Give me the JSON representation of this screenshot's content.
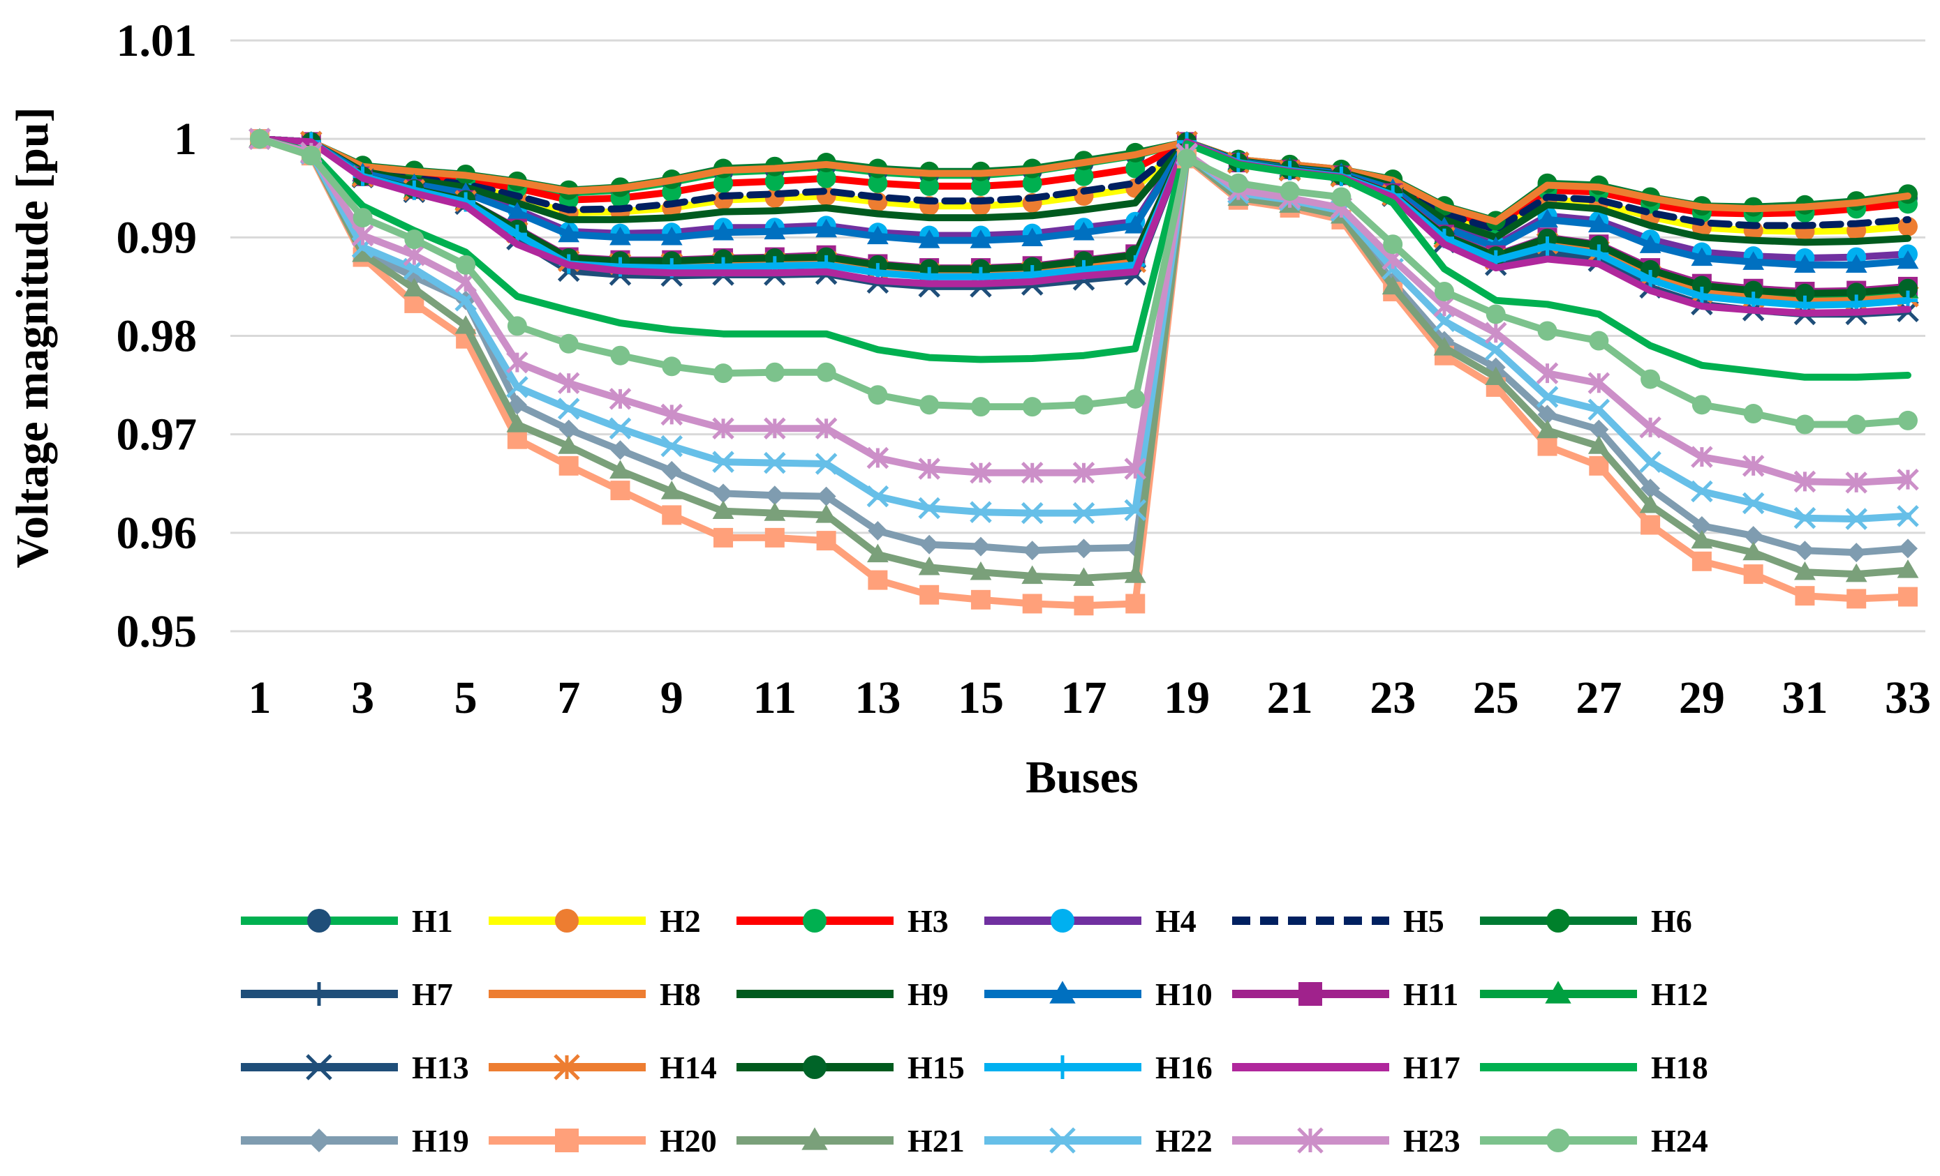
{
  "chart_data": {
    "type": "line",
    "title": "",
    "xlabel": "Buses",
    "ylabel": "Voltage magnitude [pu]",
    "x": [
      1,
      2,
      3,
      4,
      5,
      6,
      7,
      8,
      9,
      10,
      11,
      12,
      13,
      14,
      15,
      16,
      17,
      18,
      19,
      20,
      21,
      22,
      23,
      24,
      25,
      26,
      27,
      28,
      29,
      30,
      31,
      32,
      33
    ],
    "xtick_labels": [
      "1",
      "3",
      "5",
      "7",
      "9",
      "11",
      "13",
      "15",
      "17",
      "19",
      "21",
      "23",
      "25",
      "27",
      "29",
      "31",
      "33"
    ],
    "ytick_labels": [
      "0.95",
      "0.96",
      "0.97",
      "0.98",
      "0.99",
      "1",
      "1.01"
    ],
    "ylim": [
      0.95,
      1.01
    ],
    "grid": true,
    "legend_position": "bottom",
    "series": [
      {
        "name": "H1",
        "color": "#00b050",
        "marker": "circle",
        "marker_color": "#1f4e79",
        "values": [
          1,
          0.9997,
          0.9972,
          0.9966,
          0.9962,
          0.9955,
          0.9945,
          0.9948,
          0.9956,
          0.9966,
          0.9968,
          0.9972,
          0.9966,
          0.9963,
          0.9963,
          0.9967,
          0.9975,
          0.9983,
          0.9997,
          0.9979,
          0.9973,
          0.9968,
          0.9958,
          0.993,
          0.9915,
          0.9952,
          0.995,
          0.9938,
          0.9929,
          0.9928,
          0.993,
          0.9934,
          0.994
        ]
      },
      {
        "name": "H2",
        "color": "#ffff00",
        "marker": "circle",
        "marker_color": "#ed7d31",
        "values": [
          1,
          0.9997,
          0.9968,
          0.996,
          0.9953,
          0.994,
          0.9925,
          0.9926,
          0.993,
          0.9938,
          0.994,
          0.9942,
          0.9936,
          0.9932,
          0.9932,
          0.9935,
          0.9942,
          0.995,
          0.9997,
          0.9978,
          0.9972,
          0.9967,
          0.9954,
          0.9922,
          0.9905,
          0.9938,
          0.9935,
          0.9921,
          0.991,
          0.9907,
          0.9906,
          0.9907,
          0.9911
        ]
      },
      {
        "name": "H3",
        "color": "#ff0000",
        "marker": "circle",
        "marker_color": "#00b050",
        "values": [
          1,
          0.9997,
          0.997,
          0.9964,
          0.9958,
          0.995,
          0.9938,
          0.994,
          0.9946,
          0.9955,
          0.9957,
          0.996,
          0.9955,
          0.9952,
          0.9952,
          0.9955,
          0.9962,
          0.997,
          0.9997,
          0.9979,
          0.9973,
          0.9968,
          0.9957,
          0.9927,
          0.9912,
          0.9948,
          0.9946,
          0.9934,
          0.9925,
          0.9924,
          0.9925,
          0.9929,
          0.9934
        ]
      },
      {
        "name": "H4",
        "color": "#7030a0",
        "marker": "circle",
        "marker_color": "#00b0f0",
        "values": [
          1,
          0.9997,
          0.9965,
          0.9955,
          0.9946,
          0.9928,
          0.9906,
          0.9904,
          0.9905,
          0.991,
          0.991,
          0.9912,
          0.9905,
          0.9902,
          0.9902,
          0.9904,
          0.991,
          0.9916,
          0.9997,
          0.9977,
          0.997,
          0.9965,
          0.995,
          0.9912,
          0.9892,
          0.9922,
          0.9917,
          0.9898,
          0.9885,
          0.9881,
          0.9879,
          0.988,
          0.9883
        ]
      },
      {
        "name": "H5",
        "color": "#002060",
        "dashed": true,
        "marker": "none",
        "values": [
          1,
          0.9997,
          0.9968,
          0.996,
          0.9954,
          0.9942,
          0.9928,
          0.9929,
          0.9934,
          0.9942,
          0.9944,
          0.9947,
          0.9941,
          0.9937,
          0.9937,
          0.994,
          0.9947,
          0.9955,
          0.9997,
          0.9978,
          0.9972,
          0.9967,
          0.9955,
          0.9924,
          0.9908,
          0.9941,
          0.9938,
          0.9925,
          0.9915,
          0.9912,
          0.9912,
          0.9914,
          0.9918
        ]
      },
      {
        "name": "H6",
        "color": "#007a33",
        "marker": "circle",
        "marker_color": "#00802b",
        "values": [
          1,
          0.9997,
          0.9973,
          0.9968,
          0.9964,
          0.9957,
          0.9948,
          0.9951,
          0.9959,
          0.997,
          0.9972,
          0.9976,
          0.997,
          0.9967,
          0.9967,
          0.997,
          0.9978,
          0.9986,
          0.9997,
          0.9979,
          0.9974,
          0.9969,
          0.9959,
          0.9932,
          0.9917,
          0.9955,
          0.9953,
          0.9941,
          0.9932,
          0.9931,
          0.9933,
          0.9937,
          0.9944
        ]
      },
      {
        "name": "H7",
        "color": "#1f4e79",
        "marker": "plus",
        "marker_color": "#1f4e79",
        "values": [
          1,
          0.9997,
          0.9962,
          0.9948,
          0.9937,
          0.9905,
          0.9875,
          0.9872,
          0.9872,
          0.9873,
          0.9873,
          0.9874,
          0.9866,
          0.9863,
          0.9863,
          0.9865,
          0.987,
          0.9875,
          0.9997,
          0.9976,
          0.9968,
          0.9962,
          0.9944,
          0.99,
          0.9878,
          0.9895,
          0.9887,
          0.9862,
          0.9845,
          0.984,
          0.9836,
          0.9837,
          0.9841
        ]
      },
      {
        "name": "H8",
        "color": "#ed7d31",
        "marker": "none",
        "values": [
          1,
          0.9997,
          0.9972,
          0.9967,
          0.9963,
          0.9956,
          0.9947,
          0.995,
          0.9958,
          0.9968,
          0.997,
          0.9974,
          0.9968,
          0.9965,
          0.9965,
          0.9968,
          0.9976,
          0.9984,
          0.9997,
          0.9979,
          0.9974,
          0.9969,
          0.9958,
          0.9931,
          0.9916,
          0.9953,
          0.9951,
          0.994,
          0.9931,
          0.9929,
          0.9931,
          0.9935,
          0.9942
        ]
      },
      {
        "name": "H9",
        "color": "#005a1e",
        "marker": "none",
        "values": [
          1,
          0.9997,
          0.9967,
          0.9958,
          0.9951,
          0.9935,
          0.9918,
          0.9918,
          0.992,
          0.9926,
          0.9927,
          0.993,
          0.9924,
          0.992,
          0.992,
          0.9922,
          0.9928,
          0.9935,
          0.9997,
          0.9978,
          0.9971,
          0.9966,
          0.9952,
          0.9918,
          0.99,
          0.9933,
          0.9929,
          0.9912,
          0.99,
          0.9897,
          0.9895,
          0.9896,
          0.9899
        ]
      },
      {
        "name": "H10",
        "color": "#0070c0",
        "marker": "triangle",
        "marker_color": "#0070c0",
        "values": [
          1,
          0.9997,
          0.9965,
          0.9954,
          0.9945,
          0.9925,
          0.9903,
          0.99,
          0.99,
          0.9905,
          0.9906,
          0.9908,
          0.9901,
          0.9897,
          0.9897,
          0.9899,
          0.9905,
          0.9912,
          0.9997,
          0.9977,
          0.997,
          0.9965,
          0.9949,
          0.991,
          0.989,
          0.9918,
          0.9913,
          0.9892,
          0.9879,
          0.9875,
          0.9872,
          0.9872,
          0.9876
        ]
      },
      {
        "name": "H11",
        "color": "#a0228c",
        "marker": "square",
        "marker_color": "#a0228c",
        "values": [
          1,
          0.9997,
          0.9962,
          0.9949,
          0.9938,
          0.9909,
          0.988,
          0.9877,
          0.9877,
          0.9879,
          0.988,
          0.9882,
          0.9873,
          0.9869,
          0.9869,
          0.9871,
          0.9877,
          0.9883,
          0.9997,
          0.9976,
          0.9969,
          0.9963,
          0.9945,
          0.9903,
          0.9882,
          0.99,
          0.9893,
          0.9869,
          0.9853,
          0.9848,
          0.9845,
          0.9846,
          0.985
        ]
      },
      {
        "name": "H12",
        "color": "#00a040",
        "marker": "triangle",
        "marker_color": "#00a040",
        "values": [
          1,
          0.9997,
          0.9962,
          0.9948,
          0.9937,
          0.9906,
          0.9878,
          0.9875,
          0.9875,
          0.9876,
          0.9877,
          0.9878,
          0.987,
          0.9866,
          0.9866,
          0.9868,
          0.9873,
          0.9879,
          0.9997,
          0.9976,
          0.9968,
          0.9962,
          0.9944,
          0.9901,
          0.988,
          0.9898,
          0.989,
          0.9866,
          0.985,
          0.9845,
          0.9841,
          0.9842,
          0.9846
        ]
      },
      {
        "name": "H13",
        "color": "#1f4e79",
        "marker": "x",
        "marker_color": "#1f4e79",
        "values": [
          1,
          0.9997,
          0.9961,
          0.9946,
          0.9934,
          0.9898,
          0.9866,
          0.9862,
          0.9861,
          0.9862,
          0.9862,
          0.9863,
          0.9854,
          0.985,
          0.985,
          0.9852,
          0.9857,
          0.9862,
          0.9997,
          0.9976,
          0.9968,
          0.9962,
          0.9942,
          0.9895,
          0.9872,
          0.9885,
          0.9876,
          0.9849,
          0.9832,
          0.9826,
          0.9822,
          0.9822,
          0.9825
        ]
      },
      {
        "name": "H14",
        "color": "#ed7d31",
        "marker": "star",
        "marker_color": "#ed7d31",
        "values": [
          1,
          0.9997,
          0.9962,
          0.9948,
          0.9937,
          0.9905,
          0.9876,
          0.9873,
          0.9873,
          0.9874,
          0.9874,
          0.9875,
          0.9867,
          0.9863,
          0.9863,
          0.9865,
          0.987,
          0.9875,
          0.9997,
          0.9976,
          0.9968,
          0.9962,
          0.9943,
          0.99,
          0.9878,
          0.9894,
          0.9886,
          0.9861,
          0.9844,
          0.9839,
          0.9835,
          0.9836,
          0.984
        ]
      },
      {
        "name": "H15",
        "color": "#005a1e",
        "marker": "circle",
        "marker_color": "#006428",
        "values": [
          1,
          0.9997,
          0.9962,
          0.9949,
          0.9938,
          0.9908,
          0.9879,
          0.9876,
          0.9876,
          0.9878,
          0.9879,
          0.988,
          0.9872,
          0.9868,
          0.9868,
          0.987,
          0.9876,
          0.9882,
          0.9997,
          0.9976,
          0.9969,
          0.9963,
          0.9944,
          0.9902,
          0.9881,
          0.9899,
          0.9892,
          0.9867,
          0.9851,
          0.9846,
          0.9843,
          0.9844,
          0.9848
        ]
      },
      {
        "name": "H16",
        "color": "#00b0f0",
        "marker": "plus",
        "marker_color": "#00b0f0",
        "values": [
          1,
          0.9997,
          0.9962,
          0.9948,
          0.9936,
          0.9903,
          0.9873,
          0.987,
          0.9869,
          0.987,
          0.9871,
          0.9872,
          0.9864,
          0.986,
          0.986,
          0.9862,
          0.9867,
          0.9872,
          0.9997,
          0.9976,
          0.9968,
          0.9962,
          0.9943,
          0.9899,
          0.9877,
          0.9891,
          0.9883,
          0.9857,
          0.984,
          0.9835,
          0.9831,
          0.9832,
          0.9836
        ]
      },
      {
        "name": "H17",
        "color": "#b0279c",
        "marker": "none",
        "values": [
          1,
          0.9997,
          0.996,
          0.9945,
          0.9932,
          0.9893,
          0.9872,
          0.9866,
          0.9864,
          0.9864,
          0.9864,
          0.9865,
          0.9856,
          0.9853,
          0.9853,
          0.9855,
          0.9861,
          0.9865,
          0.9997,
          0.9975,
          0.9967,
          0.9961,
          0.9941,
          0.9893,
          0.9869,
          0.9878,
          0.9873,
          0.9846,
          0.983,
          0.9826,
          0.9823,
          0.9824,
          0.9827
        ]
      },
      {
        "name": "H18",
        "color": "#00b050",
        "marker": "none",
        "values": [
          1,
          0.9987,
          0.9932,
          0.9907,
          0.9885,
          0.984,
          0.9826,
          0.9813,
          0.9806,
          0.9802,
          0.9802,
          0.9802,
          0.9786,
          0.9778,
          0.9776,
          0.9777,
          0.978,
          0.9787,
          0.9995,
          0.9974,
          0.9966,
          0.996,
          0.9935,
          0.9868,
          0.9836,
          0.9832,
          0.9822,
          0.979,
          0.977,
          0.9764,
          0.9758,
          0.9758,
          0.976
        ]
      },
      {
        "name": "H19",
        "color": "#7f9cb0",
        "marker": "diamond",
        "marker_color": "#7f9cb0",
        "values": [
          1,
          0.9985,
          0.9885,
          0.986,
          0.9836,
          0.973,
          0.9705,
          0.9684,
          0.9663,
          0.964,
          0.9638,
          0.9637,
          0.9602,
          0.9588,
          0.9586,
          0.9582,
          0.9584,
          0.9585,
          0.9982,
          0.9942,
          0.9935,
          0.9925,
          0.9855,
          0.9795,
          0.9768,
          0.972,
          0.9705,
          0.9645,
          0.9607,
          0.9597,
          0.9582,
          0.958,
          0.9584
        ]
      },
      {
        "name": "H20",
        "color": "#ffa07a",
        "marker": "square",
        "marker_color": "#ffa07a",
        "values": [
          1,
          0.9983,
          0.988,
          0.9833,
          0.9797,
          0.9695,
          0.9668,
          0.9643,
          0.9618,
          0.9595,
          0.9595,
          0.9592,
          0.9552,
          0.9537,
          0.9532,
          0.9528,
          0.9526,
          0.9528,
          0.998,
          0.9938,
          0.993,
          0.9918,
          0.9845,
          0.978,
          0.9748,
          0.9688,
          0.9668,
          0.9608,
          0.9571,
          0.9558,
          0.9536,
          0.9533,
          0.9535
        ]
      },
      {
        "name": "H21",
        "color": "#7aa07a",
        "marker": "triangle",
        "marker_color": "#7aa07a",
        "values": [
          1,
          0.9985,
          0.9883,
          0.9848,
          0.981,
          0.971,
          0.9688,
          0.9663,
          0.9642,
          0.9622,
          0.962,
          0.9618,
          0.9578,
          0.9565,
          0.956,
          0.9556,
          0.9554,
          0.9557,
          0.9982,
          0.994,
          0.9933,
          0.9922,
          0.985,
          0.9788,
          0.9758,
          0.9704,
          0.9688,
          0.9628,
          0.9592,
          0.958,
          0.956,
          0.9558,
          0.9562
        ]
      },
      {
        "name": "H22",
        "color": "#66bfe8",
        "marker": "x",
        "marker_color": "#66bfe8",
        "values": [
          1,
          0.9985,
          0.989,
          0.9868,
          0.9836,
          0.9748,
          0.9726,
          0.9706,
          0.9688,
          0.9672,
          0.9671,
          0.967,
          0.9637,
          0.9625,
          0.9621,
          0.962,
          0.962,
          0.9623,
          0.9984,
          0.9945,
          0.9938,
          0.9927,
          0.9868,
          0.9815,
          0.9786,
          0.9738,
          0.9725,
          0.9672,
          0.9642,
          0.963,
          0.9615,
          0.9614,
          0.9617
        ]
      },
      {
        "name": "H23",
        "color": "#cc8fc8",
        "marker": "star",
        "marker_color": "#cc8fc8",
        "values": [
          1,
          0.9986,
          0.9902,
          0.9882,
          0.9855,
          0.9773,
          0.9752,
          0.9736,
          0.972,
          0.9706,
          0.9706,
          0.9706,
          0.9676,
          0.9665,
          0.9661,
          0.9661,
          0.9661,
          0.9665,
          0.9985,
          0.9948,
          0.994,
          0.993,
          0.9878,
          0.983,
          0.9803,
          0.9762,
          0.9752,
          0.9707,
          0.9677,
          0.9668,
          0.9652,
          0.9651,
          0.9654
        ]
      },
      {
        "name": "H24",
        "color": "#7cc28c",
        "marker": "circle",
        "marker_color": "#7cc28c",
        "values": [
          1,
          0.9983,
          0.992,
          0.9898,
          0.9872,
          0.981,
          0.9792,
          0.978,
          0.9769,
          0.9762,
          0.9763,
          0.9763,
          0.974,
          0.973,
          0.9728,
          0.9728,
          0.973,
          0.9736,
          0.998,
          0.9955,
          0.9947,
          0.9941,
          0.9893,
          0.9845,
          0.9822,
          0.9805,
          0.9795,
          0.9756,
          0.973,
          0.9721,
          0.971,
          0.971,
          0.9714
        ]
      }
    ]
  }
}
